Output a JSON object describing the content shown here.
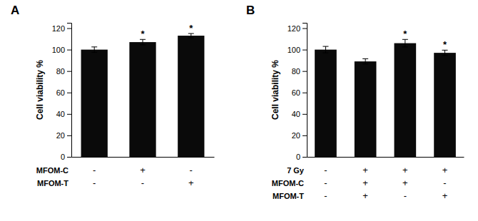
{
  "chart_data": [
    {
      "type": "bar",
      "title": "A",
      "y_label": "Cell viability %",
      "categories": [
        null,
        null,
        null
      ],
      "values": [
        100,
        107,
        113
      ],
      "errors": [
        2.5,
        2.5,
        2.0
      ],
      "significance": [
        null,
        "*",
        "*"
      ],
      "ylim": [
        0,
        125
      ],
      "yticks": [
        0,
        20,
        40,
        60,
        80,
        100,
        120
      ],
      "color": "#0a0a0a",
      "tick_labels": "y",
      "grid": false,
      "row_labels": [
        "MFOM-C",
        "MFOM-T"
      ],
      "col_signs": [
        [
          "-",
          "+",
          "-"
        ],
        [
          "-",
          "-",
          "+"
        ]
      ]
    },
    {
      "type": "bar",
      "title": "B",
      "y_label": "Cell viability %",
      "categories": [
        null,
        null,
        null,
        null
      ],
      "values": [
        100,
        89,
        106,
        97
      ],
      "errors": [
        3.0,
        2.5,
        3.5,
        2.5
      ],
      "significance": [
        null,
        null,
        "*",
        "*"
      ],
      "ylim": [
        0,
        125
      ],
      "yticks": [
        0,
        20,
        40,
        60,
        80,
        100,
        120
      ],
      "color": "#0a0a0a",
      "tick_labels": "y",
      "grid": false,
      "row_labels": [
        "7 Gy",
        "MFOM-C",
        "MFOM-T"
      ],
      "col_signs": [
        [
          "-",
          "+",
          "+",
          "+"
        ],
        [
          "-",
          "+",
          "+",
          "-"
        ],
        [
          "-",
          "+",
          "-",
          "+"
        ]
      ]
    }
  ]
}
